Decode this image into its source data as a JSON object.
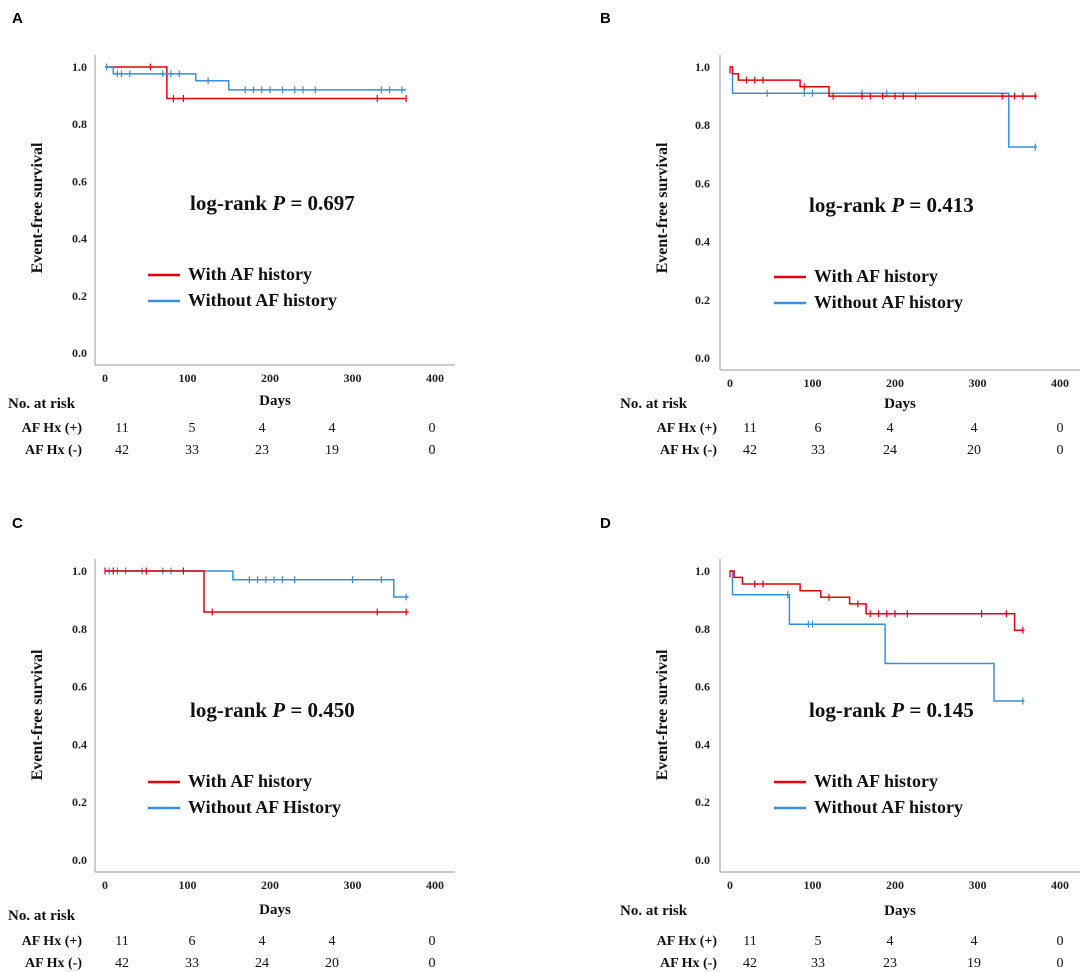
{
  "figure": {
    "series_colors": {
      "with_af": "#e3000f",
      "without_af": "#3a8fd6"
    },
    "axis_color": "#9a9a9a"
  },
  "chart_data": [
    {
      "panel": "A",
      "type": "line",
      "step": true,
      "xlabel": "Days",
      "ylabel": "Event-free survival",
      "xlim": [
        0,
        400
      ],
      "ylim": [
        0,
        1.0
      ],
      "xticks": [
        "0",
        "100",
        "200",
        "300",
        "400"
      ],
      "yticks": [
        "0.0",
        "0.2",
        "0.4",
        "0.6",
        "0.8",
        "1.0"
      ],
      "annotation": {
        "prefix": "log-rank ",
        "p": "P",
        "suffix": " = 0.697"
      },
      "legend": {
        "position": "center-left",
        "entries": [
          "With AF history",
          "Without AF history"
        ]
      },
      "series": [
        {
          "name": "With AF history",
          "key": "with_af",
          "steps": [
            [
              0,
              1.0
            ],
            [
              75,
              1.0
            ],
            [
              75,
              0.89
            ],
            [
              365,
              0.89
            ]
          ],
          "censors": [
            [
              55,
              1.0
            ],
            [
              83,
              0.89
            ],
            [
              95,
              0.89
            ],
            [
              330,
              0.89
            ],
            [
              365,
              0.89
            ]
          ]
        },
        {
          "name": "Without AF history",
          "key": "without_af",
          "steps": [
            [
              0,
              1.0
            ],
            [
              10,
              1.0
            ],
            [
              10,
              0.976
            ],
            [
              110,
              0.976
            ],
            [
              110,
              0.952
            ],
            [
              150,
              0.952
            ],
            [
              150,
              0.92
            ],
            [
              365,
              0.92
            ]
          ],
          "censors": [
            [
              2,
              1.0
            ],
            [
              15,
              0.976
            ],
            [
              20,
              0.976
            ],
            [
              30,
              0.976
            ],
            [
              70,
              0.976
            ],
            [
              80,
              0.976
            ],
            [
              90,
              0.976
            ],
            [
              125,
              0.952
            ],
            [
              170,
              0.92
            ],
            [
              180,
              0.92
            ],
            [
              190,
              0.92
            ],
            [
              200,
              0.92
            ],
            [
              215,
              0.92
            ],
            [
              230,
              0.92
            ],
            [
              240,
              0.92
            ],
            [
              255,
              0.92
            ],
            [
              335,
              0.92
            ],
            [
              345,
              0.92
            ],
            [
              360,
              0.92
            ]
          ]
        }
      ],
      "risk_table": {
        "title": "No. at risk",
        "rows": [
          {
            "label": "AF Hx (+)",
            "values": [
              "11",
              "5",
              "4",
              "4",
              "0"
            ]
          },
          {
            "label": "AF Hx (-)",
            "values": [
              "42",
              "33",
              "23",
              "19",
              "0"
            ]
          }
        ]
      }
    },
    {
      "panel": "B",
      "type": "line",
      "step": true,
      "xlabel": "Days",
      "ylabel": "Event-free survival",
      "xlim": [
        0,
        400
      ],
      "ylim": [
        0,
        1.0
      ],
      "xticks": [
        "0",
        "100",
        "200",
        "300",
        "400"
      ],
      "yticks": [
        "0.0",
        "0.2",
        "0.4",
        "0.6",
        "0.8",
        "1.0"
      ],
      "annotation": {
        "prefix": "log-rank ",
        "p": "P",
        "suffix": " = 0.413"
      },
      "legend": {
        "position": "center-left",
        "entries": [
          "With AF history",
          "Without AF history"
        ]
      },
      "series": [
        {
          "name": "Without AF history",
          "key": "without_af",
          "steps": [
            [
              0,
              1.0
            ],
            [
              3,
              1.0
            ],
            [
              3,
              0.91
            ],
            [
              338,
              0.91
            ],
            [
              338,
              0.725
            ],
            [
              372,
              0.725
            ]
          ],
          "censors": [
            [
              0,
              0.99
            ],
            [
              45,
              0.91
            ],
            [
              90,
              0.91
            ],
            [
              100,
              0.91
            ],
            [
              160,
              0.91
            ],
            [
              190,
              0.91
            ],
            [
              370,
              0.725
            ]
          ]
        },
        {
          "name": "With AF history",
          "key": "with_af",
          "steps": [
            [
              0,
              1.0
            ],
            [
              3,
              1.0
            ],
            [
              3,
              0.977
            ],
            [
              10,
              0.977
            ],
            [
              10,
              0.955
            ],
            [
              85,
              0.955
            ],
            [
              85,
              0.932
            ],
            [
              120,
              0.932
            ],
            [
              120,
              0.9
            ],
            [
              372,
              0.9
            ]
          ],
          "censors": [
            [
              0,
              0.99
            ],
            [
              20,
              0.955
            ],
            [
              30,
              0.955
            ],
            [
              40,
              0.955
            ],
            [
              90,
              0.932
            ],
            [
              125,
              0.9
            ],
            [
              160,
              0.9
            ],
            [
              170,
              0.9
            ],
            [
              185,
              0.9
            ],
            [
              200,
              0.9
            ],
            [
              210,
              0.9
            ],
            [
              225,
              0.9
            ],
            [
              330,
              0.9
            ],
            [
              345,
              0.9
            ],
            [
              355,
              0.9
            ],
            [
              370,
              0.9
            ]
          ]
        }
      ],
      "risk_table": {
        "title": "No. at risk",
        "rows": [
          {
            "label": "AF Hx (+)",
            "values": [
              "11",
              "6",
              "4",
              "4",
              "0"
            ]
          },
          {
            "label": "AF Hx (-)",
            "values": [
              "42",
              "33",
              "24",
              "20",
              "0"
            ]
          }
        ]
      }
    },
    {
      "panel": "C",
      "type": "line",
      "step": true,
      "xlabel": "Days",
      "ylabel": "Event-free survival",
      "xlim": [
        0,
        400
      ],
      "ylim": [
        0,
        1.0
      ],
      "xticks": [
        "0",
        "100",
        "200",
        "300",
        "400"
      ],
      "yticks": [
        "0.0",
        "0.2",
        "0.4",
        "0.6",
        "0.8",
        "1.0"
      ],
      "annotation": {
        "prefix": "log-rank ",
        "p": "P",
        "suffix": " = 0.450"
      },
      "legend": {
        "position": "center-left",
        "entries": [
          "With AF history",
          "Without AF History"
        ]
      },
      "series": [
        {
          "name": "Without AF History",
          "key": "without_af",
          "steps": [
            [
              0,
              1.0
            ],
            [
              155,
              1.0
            ],
            [
              155,
              0.97
            ],
            [
              350,
              0.97
            ],
            [
              350,
              0.91
            ],
            [
              368,
              0.91
            ]
          ],
          "censors": [
            [
              5,
              1.0
            ],
            [
              15,
              1.0
            ],
            [
              25,
              1.0
            ],
            [
              45,
              1.0
            ],
            [
              70,
              1.0
            ],
            [
              80,
              1.0
            ],
            [
              175,
              0.97
            ],
            [
              185,
              0.97
            ],
            [
              195,
              0.97
            ],
            [
              205,
              0.97
            ],
            [
              215,
              0.97
            ],
            [
              230,
              0.97
            ],
            [
              300,
              0.97
            ],
            [
              335,
              0.97
            ],
            [
              365,
              0.91
            ]
          ]
        },
        {
          "name": "With AF history",
          "key": "with_af",
          "steps": [
            [
              0,
              1.0
            ],
            [
              120,
              1.0
            ],
            [
              120,
              0.858
            ],
            [
              368,
              0.858
            ]
          ],
          "censors": [
            [
              0,
              1.0
            ],
            [
              10,
              1.0
            ],
            [
              50,
              1.0
            ],
            [
              95,
              1.0
            ],
            [
              130,
              0.858
            ],
            [
              330,
              0.858
            ],
            [
              365,
              0.858
            ]
          ]
        }
      ],
      "risk_table": {
        "title": "No. at risk",
        "rows": [
          {
            "label": "AF Hx (+)",
            "values": [
              "11",
              "6",
              "4",
              "4",
              "0"
            ]
          },
          {
            "label": "AF Hx (-)",
            "values": [
              "42",
              "33",
              "24",
              "20",
              "0"
            ]
          }
        ]
      }
    },
    {
      "panel": "D",
      "type": "line",
      "step": true,
      "xlabel": "Days",
      "ylabel": "Event-free survival",
      "xlim": [
        0,
        400
      ],
      "ylim": [
        0,
        1.0
      ],
      "xticks": [
        "0",
        "100",
        "200",
        "300",
        "400"
      ],
      "yticks": [
        "0.0",
        "0.2",
        "0.4",
        "0.6",
        "0.8",
        "1.0"
      ],
      "annotation": {
        "prefix": "log-rank ",
        "p": "P",
        "suffix": " = 0.145"
      },
      "legend": {
        "position": "center-left",
        "entries": [
          "With AF history",
          "Without AF history"
        ]
      },
      "series": [
        {
          "name": "Without AF history",
          "key": "without_af",
          "steps": [
            [
              0,
              1.0
            ],
            [
              3,
              1.0
            ],
            [
              3,
              0.918
            ],
            [
              72,
              0.918
            ],
            [
              72,
              0.816
            ],
            [
              188,
              0.816
            ],
            [
              188,
              0.68
            ],
            [
              320,
              0.68
            ],
            [
              320,
              0.55
            ],
            [
              357,
              0.55
            ]
          ],
          "censors": [
            [
              0,
              0.99
            ],
            [
              70,
              0.918
            ],
            [
              95,
              0.816
            ],
            [
              100,
              0.816
            ],
            [
              355,
              0.55
            ]
          ]
        },
        {
          "name": "With AF history",
          "key": "with_af",
          "steps": [
            [
              0,
              1.0
            ],
            [
              5,
              1.0
            ],
            [
              5,
              0.978
            ],
            [
              15,
              0.978
            ],
            [
              15,
              0.955
            ],
            [
              85,
              0.955
            ],
            [
              85,
              0.932
            ],
            [
              110,
              0.932
            ],
            [
              110,
              0.909
            ],
            [
              145,
              0.909
            ],
            [
              145,
              0.886
            ],
            [
              165,
              0.886
            ],
            [
              165,
              0.852
            ],
            [
              345,
              0.852
            ],
            [
              345,
              0.795
            ],
            [
              357,
              0.795
            ]
          ],
          "censors": [
            [
              0,
              0.99
            ],
            [
              30,
              0.955
            ],
            [
              40,
              0.955
            ],
            [
              120,
              0.909
            ],
            [
              155,
              0.886
            ],
            [
              170,
              0.852
            ],
            [
              180,
              0.852
            ],
            [
              190,
              0.852
            ],
            [
              200,
              0.852
            ],
            [
              215,
              0.852
            ],
            [
              305,
              0.852
            ],
            [
              335,
              0.852
            ],
            [
              355,
              0.795
            ]
          ]
        }
      ],
      "risk_table": {
        "title": "No. at risk",
        "rows": [
          {
            "label": "AF Hx (+)",
            "values": [
              "11",
              "5",
              "4",
              "4",
              "0"
            ]
          },
          {
            "label": "AF Hx (-)",
            "values": [
              "42",
              "33",
              "23",
              "19",
              "0"
            ]
          }
        ]
      }
    }
  ]
}
